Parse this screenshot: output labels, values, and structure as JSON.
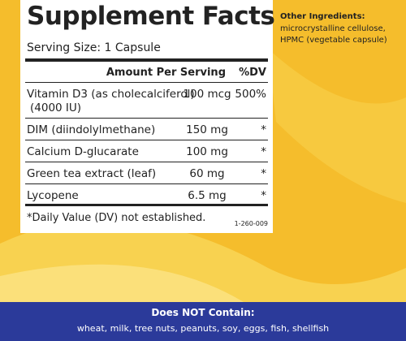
{
  "panel": {
    "title": "Supplement Facts",
    "serving_size": "Serving Size: 1 Capsule",
    "header": {
      "amount": "Amount Per Serving",
      "dv": "%DV"
    },
    "rows": [
      {
        "name": [
          "Vitamin D3 (as cholecalciferol)",
          "(4000 IU)"
        ],
        "amount": "100 mcg",
        "dv": "500%"
      },
      {
        "name": [
          "DIM (diindolylmethane)"
        ],
        "amount": "150 mg",
        "dv": "*"
      },
      {
        "name": [
          "Calcium D-glucarate"
        ],
        "amount": "100 mg",
        "dv": "*"
      },
      {
        "name": [
          "Green tea extract (leaf)"
        ],
        "amount": "60 mg",
        "dv": "*"
      },
      {
        "name": [
          "Lycopene"
        ],
        "amount": "6.5 mg",
        "dv": "*"
      }
    ],
    "footnote": "*Daily Value (DV) not established.",
    "code": "1-260-009"
  },
  "other_ingredients": {
    "title": "Other Ingredients:",
    "lines": [
      "microcrystalline cellulose,",
      "HPMC (vegetable capsule)"
    ]
  },
  "allergens": {
    "title": "Does NOT Contain:",
    "text": "wheat, milk, tree nuts, peanuts, soy, eggs, fish, shellfish"
  }
}
